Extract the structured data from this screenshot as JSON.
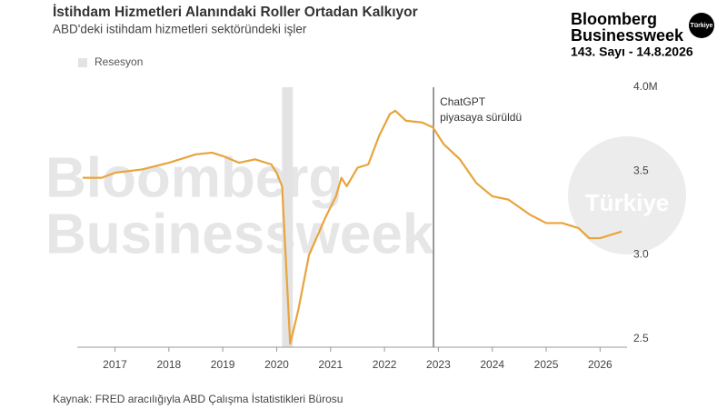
{
  "chart_data": {
    "type": "line",
    "title": "İstihdam Hizmetleri Alanındaki Roller Ortadan Kalkıyor",
    "subtitle": "ABD'deki istihdam hizmetleri sektöründeki işler",
    "source": "Kaynak: FRED aracılığıyla ABD Çalışma İstatistikleri Bürosu",
    "brand": {
      "name": "Bloomberg",
      "sub": "Businessweek",
      "badge": "Türkiye",
      "issue": "143. Sayı - 14.8.2026"
    },
    "watermark": {
      "line1": "Bloomberg",
      "line2": "Businessweek",
      "badge": "Türkiye"
    },
    "recession": {
      "label": "Resesyon",
      "start": 2020.1,
      "end": 2020.3,
      "color": "#e3e3e3"
    },
    "annotation": {
      "lines": [
        "ChatGPT",
        "piyasaya sürüldü"
      ],
      "x": 2022.91
    },
    "x": [
      2016.4,
      2016.75,
      2017.0,
      2017.5,
      2018.0,
      2018.5,
      2018.8,
      2019.0,
      2019.3,
      2019.6,
      2019.9,
      2020.0,
      2020.1,
      2020.25,
      2020.4,
      2020.6,
      2020.9,
      2021.1,
      2021.2,
      2021.3,
      2021.5,
      2021.7,
      2021.9,
      2022.1,
      2022.2,
      2022.4,
      2022.7,
      2022.9,
      2023.1,
      2023.4,
      2023.7,
      2024.0,
      2024.3,
      2024.7,
      2025.0,
      2025.3,
      2025.6,
      2025.8,
      2026.0,
      2026.2,
      2026.4
    ],
    "series": [
      {
        "color": "#e8a43c",
        "values": [
          3.46,
          3.46,
          3.49,
          3.51,
          3.55,
          3.6,
          3.61,
          3.59,
          3.55,
          3.57,
          3.54,
          3.49,
          3.41,
          2.47,
          2.67,
          3.0,
          3.22,
          3.35,
          3.46,
          3.41,
          3.52,
          3.54,
          3.71,
          3.84,
          3.86,
          3.8,
          3.79,
          3.76,
          3.66,
          3.57,
          3.43,
          3.35,
          3.33,
          3.24,
          3.19,
          3.19,
          3.16,
          3.1,
          3.1,
          3.12,
          3.14
        ]
      }
    ],
    "xlim": [
      2016.3,
      2026.5
    ],
    "xticks": [
      2017,
      2018,
      2019,
      2020,
      2021,
      2022,
      2023,
      2024,
      2025,
      2026
    ],
    "ylim": [
      2.45,
      4.0
    ],
    "yticks": [
      2.5,
      {
        "value": 3,
        "label": "3.0"
      },
      3.5,
      {
        "value": 4,
        "label": "4.0M"
      }
    ]
  }
}
